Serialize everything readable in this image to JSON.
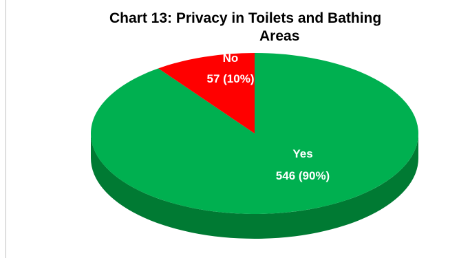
{
  "chart_data": {
    "type": "pie",
    "title_line1": "Chart 13: Privacy in Toilets and Bathing",
    "title_line2": "Areas",
    "slices": [
      {
        "name": "Yes",
        "count": 546,
        "percent": 90,
        "label_line1": "Yes",
        "label_line2": "546 (90%)",
        "color": "#00b050",
        "side_color": "#007a33"
      },
      {
        "name": "No",
        "count": 57,
        "percent": 10,
        "label_line1": "No",
        "label_line2": "57 (10%)",
        "color": "#ff0000",
        "side_color": "#a00000"
      }
    ],
    "label_color": "#ffffff"
  }
}
